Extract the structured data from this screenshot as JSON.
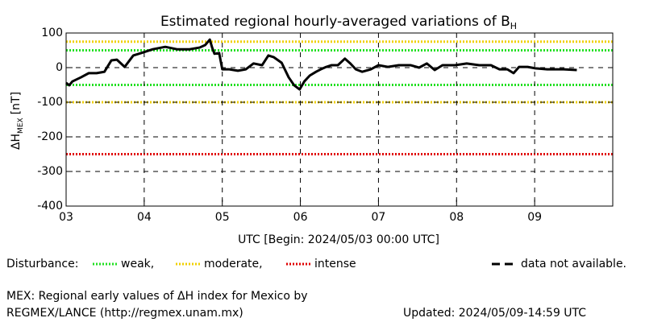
{
  "chart_data": {
    "type": "line",
    "title": "Estimated regional hourly-averaged variations of B",
    "title_subscript": "H",
    "y_label": {
      "main": "ΔH",
      "subscript": "MEX",
      "unit": "[nT]"
    },
    "x_label": "UTC [Begin: 2024/05/03 00:00 UTC]",
    "xlim": [
      0,
      7
    ],
    "xticks": [
      {
        "value": 0,
        "label": "03"
      },
      {
        "value": 1,
        "label": "04"
      },
      {
        "value": 2,
        "label": "05"
      },
      {
        "value": 3,
        "label": "06"
      },
      {
        "value": 4,
        "label": "07"
      },
      {
        "value": 5,
        "label": "08"
      },
      {
        "value": 6,
        "label": "09"
      }
    ],
    "ylim": [
      -400,
      100
    ],
    "yticks": [
      -400,
      -300,
      -200,
      -100,
      0,
      100
    ],
    "grid": true,
    "x": [
      0,
      0.04,
      0.08,
      0.19,
      0.29,
      0.39,
      0.49,
      0.58,
      0.65,
      0.75,
      0.86,
      0.96,
      1.11,
      1.27,
      1.42,
      1.58,
      1.71,
      1.78,
      1.84,
      1.87,
      1.9,
      1.96,
      2.0,
      2.09,
      2.2,
      2.3,
      2.4,
      2.51,
      2.59,
      2.66,
      2.76,
      2.85,
      2.92,
      2.99,
      3.05,
      3.12,
      3.2,
      3.26,
      3.33,
      3.4,
      3.48,
      3.57,
      3.64,
      3.71,
      3.79,
      3.9,
      4.0,
      4.12,
      4.26,
      4.41,
      4.52,
      4.62,
      4.72,
      4.82,
      4.98,
      5.13,
      5.29,
      5.44,
      5.55,
      5.65,
      5.73,
      5.8,
      5.91,
      6.01,
      6.16,
      6.37,
      6.54
    ],
    "series": [
      {
        "color": "#000000",
        "values": [
          -44,
          -51,
          -40,
          -28,
          -16,
          -16,
          -12,
          21,
          23,
          2,
          35,
          42,
          53,
          60,
          53,
          53,
          58,
          65,
          81,
          58,
          40,
          42,
          -5,
          -5,
          -9,
          -5,
          12,
          7,
          35,
          30,
          14,
          -28,
          -51,
          -63,
          -40,
          -23,
          -12,
          -5,
          2,
          7,
          7,
          26,
          12,
          -5,
          -12,
          -5,
          7,
          2,
          7,
          7,
          0,
          12,
          -7,
          7,
          7,
          12,
          7,
          7,
          -5,
          -5,
          -16,
          2,
          2,
          -2,
          -5,
          -5,
          -7
        ]
      }
    ],
    "legend_title": "Disturbance:",
    "reference_lines": [
      {
        "name": "weak,",
        "color": "#22e022",
        "values": [
          50,
          -50
        ]
      },
      {
        "name": "moderate,",
        "color": "#f0d000",
        "values": [
          75,
          -100
        ]
      },
      {
        "name": "intense",
        "color": "#e00000",
        "values": [
          -250
        ]
      }
    ],
    "missing_label": "data not available.",
    "footer": [
      "MEX: Regional early values of ΔH index for Mexico by",
      "REGMEX/LANCE (http://regmex.unam.mx)"
    ],
    "updated": "Updated: 2024/05/09-14:59 UTC"
  }
}
